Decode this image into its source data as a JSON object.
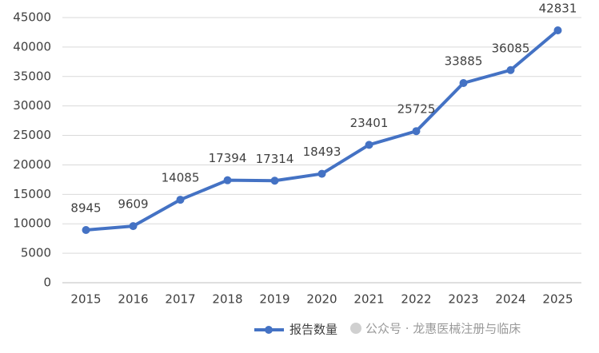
{
  "chart_data": {
    "type": "line",
    "categories": [
      "2015",
      "2016",
      "2017",
      "2018",
      "2019",
      "2020",
      "2021",
      "2022",
      "2023",
      "2024",
      "2025"
    ],
    "series": [
      {
        "name": "报告数量",
        "color": "#4472c4",
        "values": [
          8945,
          9609,
          14085,
          17394,
          17314,
          18493,
          23401,
          25725,
          33885,
          36085,
          42831
        ]
      }
    ],
    "ylim": [
      0,
      45000
    ],
    "yticks": [
      0,
      5000,
      10000,
      15000,
      20000,
      25000,
      30000,
      35000,
      40000,
      45000
    ],
    "grid": true,
    "legend": "bottom",
    "watermark": "公众号 · 龙惠医械注册与临床"
  }
}
